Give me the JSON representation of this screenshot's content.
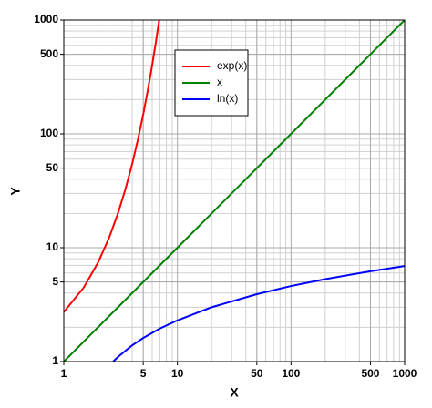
{
  "chart_data": {
    "type": "line",
    "xlabel": "X",
    "ylabel": "Y",
    "xscale": "log",
    "yscale": "log",
    "xlim": [
      1,
      1000
    ],
    "ylim": [
      1,
      1000
    ],
    "xticks": [
      1,
      5,
      10,
      50,
      100,
      500,
      1000
    ],
    "yticks": [
      1,
      5,
      10,
      50,
      100,
      500,
      1000
    ],
    "grid": true,
    "minor_grid": true,
    "legend": "upper center",
    "series": [
      {
        "name": "exp(x)",
        "color": "#ff0000",
        "x": [
          1,
          1.5,
          2,
          2.5,
          3,
          3.5,
          4,
          4.5,
          5,
          5.5,
          6,
          6.5,
          6.9
        ],
        "values": [
          2.72,
          4.48,
          7.39,
          12.18,
          20.09,
          33.12,
          54.6,
          90.02,
          148.4,
          244.7,
          403.4,
          665.1,
          992.3
        ]
      },
      {
        "name": "x",
        "color": "#008000",
        "x": [
          1,
          10,
          100,
          1000
        ],
        "values": [
          1,
          10,
          100,
          1000
        ]
      },
      {
        "name": "ln(x)",
        "color": "#0000ff",
        "x": [
          2.72,
          3,
          4,
          5,
          7,
          10,
          20,
          50,
          100,
          200,
          500,
          1000
        ],
        "values": [
          1,
          1.1,
          1.39,
          1.61,
          1.95,
          2.3,
          3.0,
          3.91,
          4.61,
          5.3,
          6.21,
          6.91
        ]
      }
    ]
  }
}
